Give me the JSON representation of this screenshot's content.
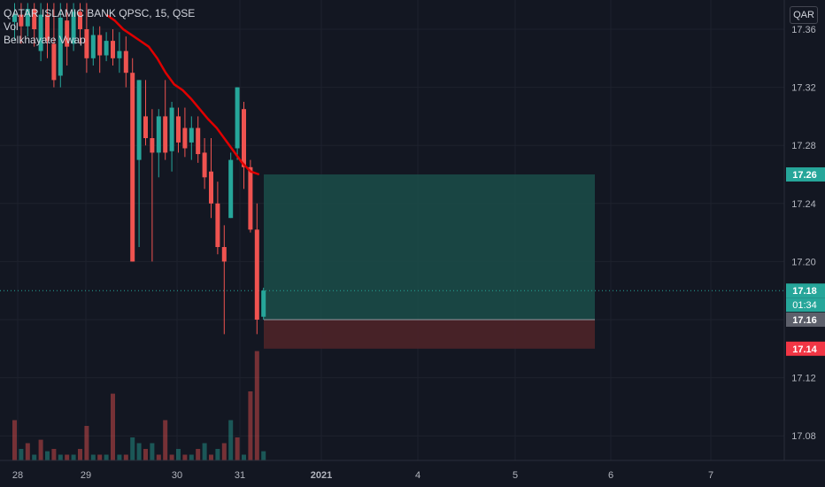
{
  "header": {
    "symbol": "QATAR ISLAMIC BANK QPSC, 15, QSE",
    "indicator_1": "Vol",
    "indicator_2": "Belkhayate Vwap"
  },
  "currency_badge": "QAR",
  "colors": {
    "background": "#131722",
    "up": "#26a69a",
    "down": "#ef5350",
    "vwap": "#e00000",
    "target_zone": "#1b4a47",
    "stop_zone": "#4a2328",
    "price_badge_up": "#26a69a",
    "price_badge_down": "#f23645",
    "price_badge_gray": "#5d606b"
  },
  "chart_data": {
    "type": "candlestick",
    "y_ticks": [
      "17.36",
      "17.32",
      "17.28",
      "17.24",
      "17.20",
      "17.16",
      "17.12",
      "17.08"
    ],
    "ylim": [
      17.055,
      17.378
    ],
    "x_ticks": [
      "28",
      "29",
      "30",
      "31",
      "2021",
      "4",
      "5",
      "6",
      "7"
    ],
    "price_labels": [
      {
        "value": "17.26",
        "color": "#26a69a"
      },
      {
        "value": "17.18",
        "color": "#26a69a",
        "timer": "01:34"
      },
      {
        "value": "17.16",
        "color": "#5d606b"
      },
      {
        "value": "17.14",
        "color": "#f23645"
      }
    ],
    "last_price": 17.18,
    "position": {
      "entry": 17.16,
      "target": 17.26,
      "stop": 17.14
    },
    "candles": [
      {
        "t": 0,
        "o": 17.365,
        "h": 17.378,
        "c": 17.37,
        "l": 17.352
      },
      {
        "t": 1,
        "o": 17.37,
        "h": 17.378,
        "c": 17.362,
        "l": 17.35
      },
      {
        "t": 2,
        "o": 17.362,
        "h": 17.378,
        "c": 17.374,
        "l": 17.355
      },
      {
        "t": 3,
        "o": 17.374,
        "h": 17.378,
        "c": 17.36,
        "l": 17.348
      },
      {
        "t": 4,
        "o": 17.345,
        "h": 17.378,
        "c": 17.37,
        "l": 17.338
      },
      {
        "t": 5,
        "o": 17.37,
        "h": 17.378,
        "c": 17.352,
        "l": 17.34
      },
      {
        "t": 6,
        "o": 17.35,
        "h": 17.378,
        "c": 17.325,
        "l": 17.32
      },
      {
        "t": 7,
        "o": 17.328,
        "h": 17.378,
        "c": 17.368,
        "l": 17.32
      },
      {
        "t": 8,
        "o": 17.366,
        "h": 17.378,
        "c": 17.348,
        "l": 17.335
      },
      {
        "t": 9,
        "o": 17.35,
        "h": 17.378,
        "c": 17.372,
        "l": 17.345
      },
      {
        "t": 10,
        "o": 17.372,
        "h": 17.378,
        "c": 17.36,
        "l": 17.35
      },
      {
        "t": 11,
        "o": 17.36,
        "h": 17.378,
        "c": 17.34,
        "l": 17.33
      },
      {
        "t": 12,
        "o": 17.34,
        "h": 17.362,
        "c": 17.356,
        "l": 17.335
      },
      {
        "t": 13,
        "o": 17.356,
        "h": 17.362,
        "c": 17.342,
        "l": 17.33
      },
      {
        "t": 14,
        "o": 17.342,
        "h": 17.358,
        "c": 17.352,
        "l": 17.338
      },
      {
        "t": 15,
        "o": 17.352,
        "h": 17.36,
        "c": 17.34,
        "l": 17.335
      },
      {
        "t": 16,
        "o": 17.34,
        "h": 17.358,
        "c": 17.345,
        "l": 17.33
      },
      {
        "t": 17,
        "o": 17.345,
        "h": 17.355,
        "c": 17.33,
        "l": 17.32
      },
      {
        "t": 18,
        "o": 17.33,
        "h": 17.34,
        "c": 17.2,
        "l": 17.2
      },
      {
        "t": 19,
        "o": 17.27,
        "h": 17.325,
        "c": 17.325,
        "l": 17.21
      },
      {
        "t": 20,
        "o": 17.3,
        "h": 17.325,
        "c": 17.285,
        "l": 17.28
      },
      {
        "t": 21,
        "o": 17.285,
        "h": 17.305,
        "c": 17.275,
        "l": 17.2
      },
      {
        "t": 22,
        "o": 17.275,
        "h": 17.305,
        "c": 17.3,
        "l": 17.258
      },
      {
        "t": 23,
        "o": 17.3,
        "h": 17.325,
        "c": 17.275,
        "l": 17.27
      },
      {
        "t": 24,
        "o": 17.276,
        "h": 17.31,
        "c": 17.306,
        "l": 17.262
      },
      {
        "t": 25,
        "o": 17.3,
        "h": 17.306,
        "c": 17.282,
        "l": 17.275
      },
      {
        "t": 26,
        "o": 17.292,
        "h": 17.306,
        "c": 17.278,
        "l": 17.272
      },
      {
        "t": 27,
        "o": 17.282,
        "h": 17.3,
        "c": 17.292,
        "l": 17.27
      },
      {
        "t": 28,
        "o": 17.292,
        "h": 17.3,
        "c": 17.274,
        "l": 17.268
      },
      {
        "t": 29,
        "o": 17.275,
        "h": 17.285,
        "c": 17.258,
        "l": 17.25
      },
      {
        "t": 30,
        "o": 17.262,
        "h": 17.285,
        "c": 17.24,
        "l": 17.23
      },
      {
        "t": 31,
        "o": 17.24,
        "h": 17.255,
        "c": 17.21,
        "l": 17.205
      },
      {
        "t": 32,
        "o": 17.21,
        "h": 17.225,
        "c": 17.2,
        "l": 17.15
      },
      {
        "t": 33,
        "o": 17.23,
        "h": 17.275,
        "c": 17.27,
        "l": 17.23
      },
      {
        "t": 34,
        "o": 17.278,
        "h": 17.32,
        "c": 17.32,
        "l": 17.27
      },
      {
        "t": 35,
        "o": 17.305,
        "h": 17.31,
        "c": 17.265,
        "l": 17.25
      },
      {
        "t": 36,
        "o": 17.265,
        "h": 17.27,
        "c": 17.222,
        "l": 17.22
      },
      {
        "t": 37,
        "o": 17.222,
        "h": 17.24,
        "c": 17.16,
        "l": 17.15
      },
      {
        "t": 38,
        "o": 17.162,
        "h": 17.182,
        "c": 17.18,
        "l": 17.16
      }
    ],
    "volume": [
      {
        "t": 0,
        "v": 0.35,
        "up": false
      },
      {
        "t": 1,
        "v": 0.1,
        "up": true
      },
      {
        "t": 2,
        "v": 0.15,
        "up": false
      },
      {
        "t": 3,
        "v": 0.05,
        "up": true
      },
      {
        "t": 4,
        "v": 0.18,
        "up": false
      },
      {
        "t": 5,
        "v": 0.08,
        "up": true
      },
      {
        "t": 6,
        "v": 0.1,
        "up": false
      },
      {
        "t": 7,
        "v": 0.05,
        "up": true
      },
      {
        "t": 8,
        "v": 0.05,
        "up": false
      },
      {
        "t": 9,
        "v": 0.05,
        "up": true
      },
      {
        "t": 10,
        "v": 0.1,
        "up": false
      },
      {
        "t": 11,
        "v": 0.3,
        "up": false
      },
      {
        "t": 12,
        "v": 0.05,
        "up": true
      },
      {
        "t": 13,
        "v": 0.05,
        "up": false
      },
      {
        "t": 14,
        "v": 0.05,
        "up": true
      },
      {
        "t": 15,
        "v": 0.58,
        "up": false
      },
      {
        "t": 16,
        "v": 0.05,
        "up": true
      },
      {
        "t": 17,
        "v": 0.05,
        "up": false
      },
      {
        "t": 18,
        "v": 0.2,
        "up": true
      },
      {
        "t": 19,
        "v": 0.15,
        "up": true
      },
      {
        "t": 20,
        "v": 0.1,
        "up": false
      },
      {
        "t": 21,
        "v": 0.15,
        "up": true
      },
      {
        "t": 22,
        "v": 0.05,
        "up": false
      },
      {
        "t": 23,
        "v": 0.35,
        "up": false
      },
      {
        "t": 24,
        "v": 0.05,
        "up": false
      },
      {
        "t": 25,
        "v": 0.1,
        "up": true
      },
      {
        "t": 26,
        "v": 0.05,
        "up": false
      },
      {
        "t": 27,
        "v": 0.05,
        "up": true
      },
      {
        "t": 28,
        "v": 0.1,
        "up": false
      },
      {
        "t": 29,
        "v": 0.15,
        "up": true
      },
      {
        "t": 30,
        "v": 0.05,
        "up": false
      },
      {
        "t": 31,
        "v": 0.1,
        "up": true
      },
      {
        "t": 32,
        "v": 0.15,
        "up": false
      },
      {
        "t": 33,
        "v": 0.35,
        "up": true
      },
      {
        "t": 34,
        "v": 0.2,
        "up": false
      },
      {
        "t": 35,
        "v": 0.05,
        "up": true
      },
      {
        "t": 36,
        "v": 0.6,
        "up": false
      },
      {
        "t": 37,
        "v": 0.95,
        "up": false
      },
      {
        "t": 38,
        "v": 0.08,
        "up": true
      }
    ],
    "vwap": [
      17.37,
      17.366,
      17.36,
      17.356,
      17.352,
      17.348,
      17.34,
      17.33,
      17.322,
      17.318,
      17.312,
      17.305,
      17.298,
      17.292,
      17.284,
      17.276,
      17.268,
      17.262,
      17.26
    ]
  }
}
